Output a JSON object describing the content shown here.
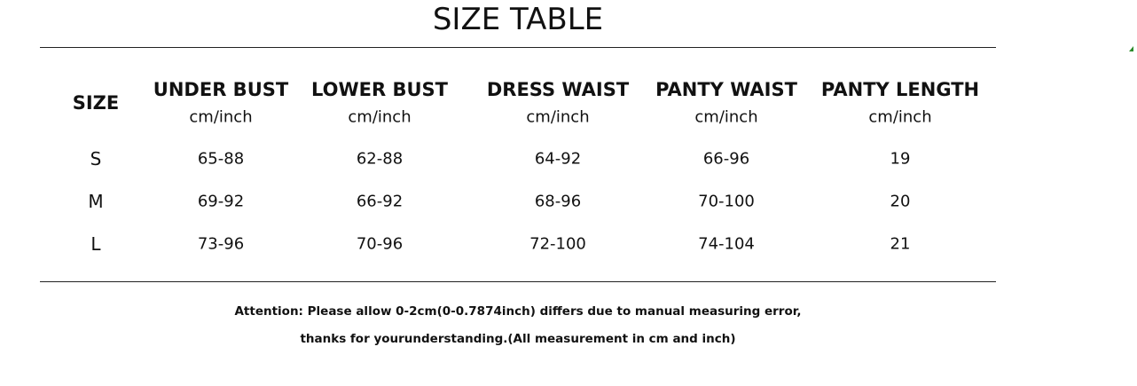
{
  "title": "SIZE TABLE",
  "table": {
    "columns": [
      {
        "label": "SIZE"
      },
      {
        "label": "UNDER BUST",
        "unit": "cm/inch"
      },
      {
        "label": "LOWER BUST",
        "unit": "cm/inch"
      },
      {
        "label": "DRESS WAIST",
        "unit": "cm/inch"
      },
      {
        "label": "PANTY WAIST",
        "unit": "cm/inch"
      },
      {
        "label": "PANTY LENGTH",
        "unit": "cm/inch"
      }
    ],
    "rows": [
      [
        "S",
        "65-88",
        "62-88",
        "64-92",
        "66-96",
        "19"
      ],
      [
        "M",
        "69-92",
        "66-92",
        "68-96",
        "70-100",
        "20"
      ],
      [
        "L",
        "73-96",
        "70-96",
        "72-100",
        "74-104",
        "21"
      ]
    ]
  },
  "note": [
    "Attention: Please allow 0-2cm(0-0.7874inch) differs due to manual measuring error,",
    "thanks for yourunderstanding.(All measurement in cm and inch)"
  ]
}
